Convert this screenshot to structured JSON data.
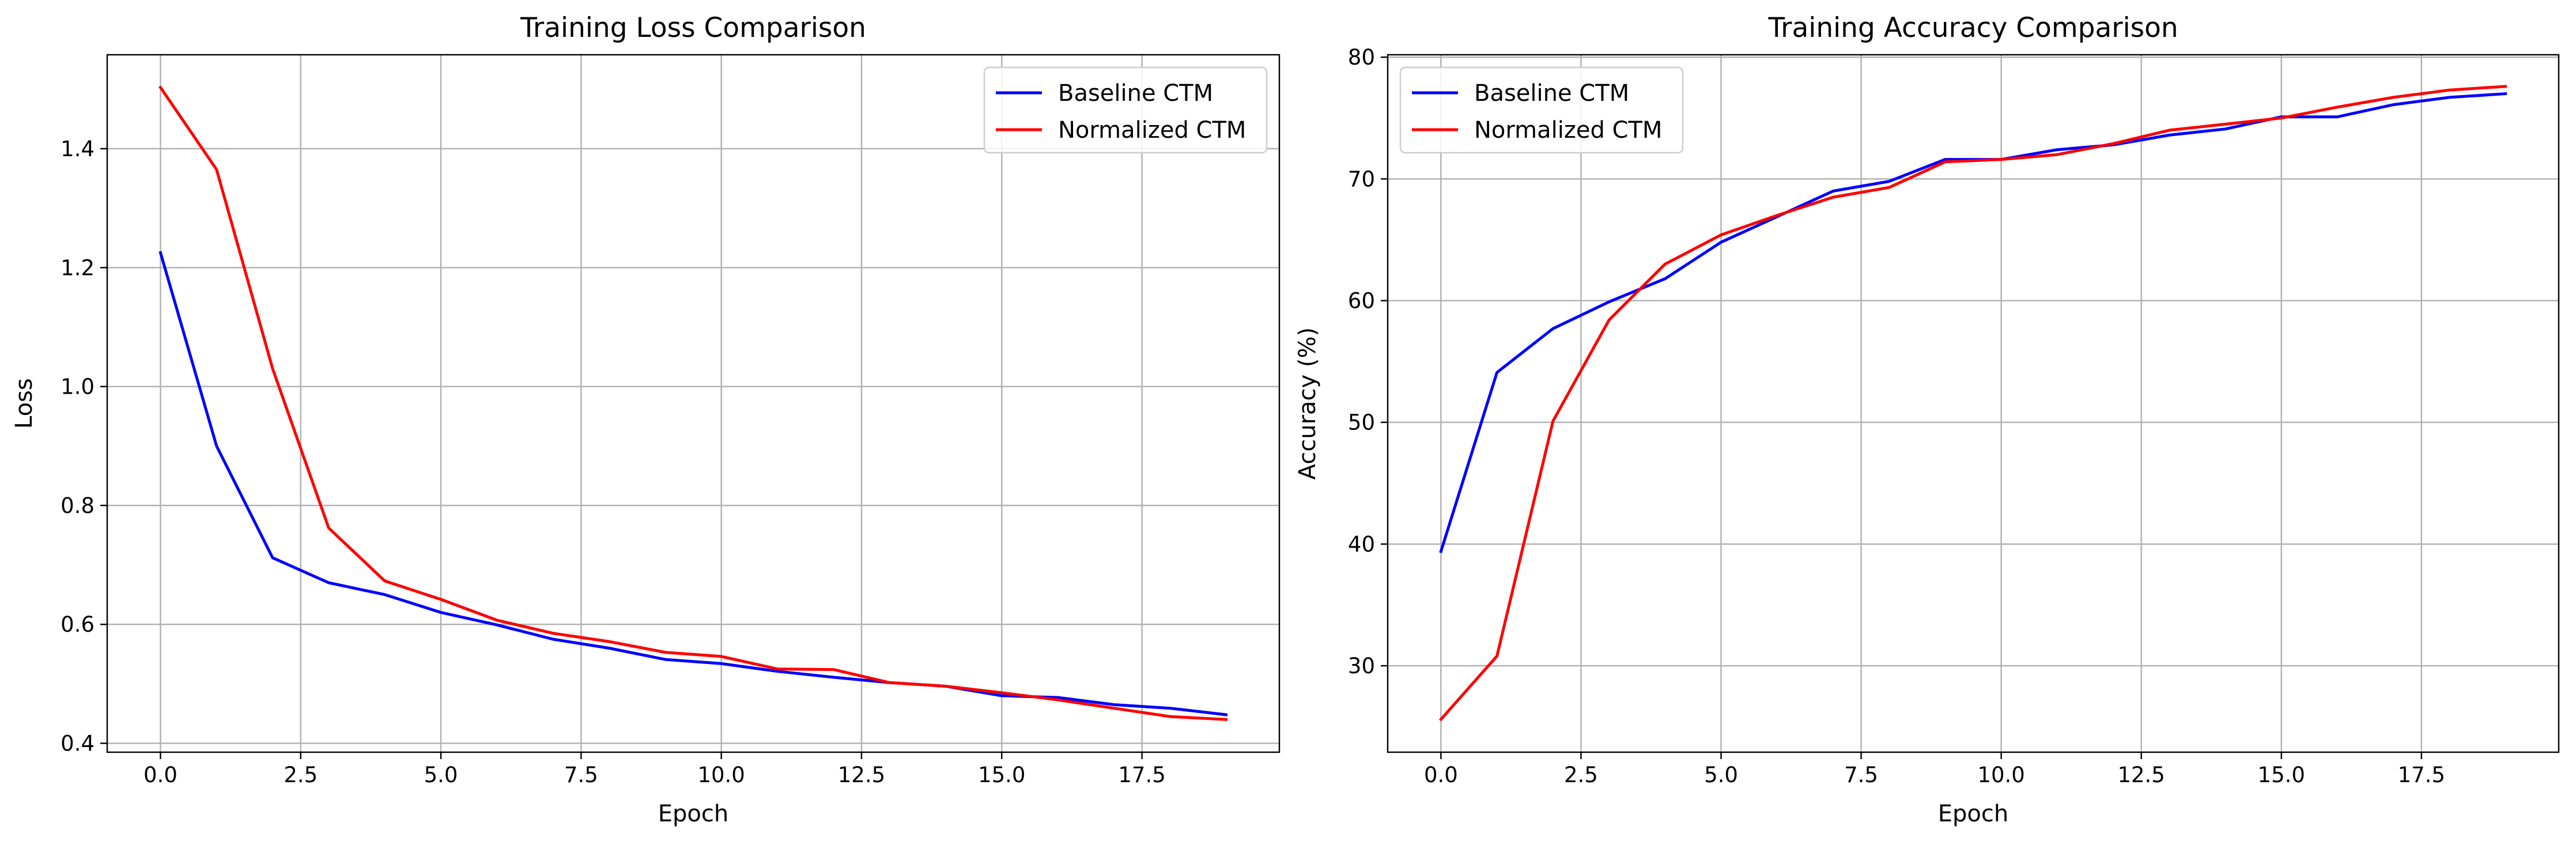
{
  "chart_data": [
    {
      "type": "line",
      "title": "Training Loss Comparison",
      "xlabel": "Epoch",
      "ylabel": "Loss",
      "xlim": [
        -0.95,
        19.95
      ],
      "ylim": [
        0.385,
        1.558
      ],
      "xticks": [
        0,
        2.5,
        5,
        7.5,
        10,
        12.5,
        15,
        17.5
      ],
      "xtick_labels": [
        "0.0",
        "2.5",
        "5.0",
        "7.5",
        "10.0",
        "12.5",
        "15.0",
        "17.5"
      ],
      "yticks": [
        0.4,
        0.6,
        0.8,
        1.0,
        1.2,
        1.4
      ],
      "ytick_labels": [
        "0.4",
        "0.6",
        "0.8",
        "1.0",
        "1.2",
        "1.4"
      ],
      "grid": true,
      "legend_position": "upper right",
      "x": [
        0,
        1,
        2,
        3,
        4,
        5,
        6,
        7,
        8,
        9,
        10,
        11,
        12,
        13,
        14,
        15,
        16,
        17,
        18,
        19
      ],
      "series": [
        {
          "name": "Baseline CTM",
          "color": "#0000ff",
          "values": [
            1.225,
            0.9,
            0.712,
            0.67,
            0.65,
            0.62,
            0.599,
            0.575,
            0.56,
            0.541,
            0.534,
            0.521,
            0.511,
            0.502,
            0.496,
            0.48,
            0.477,
            0.465,
            0.459,
            0.448
          ]
        },
        {
          "name": "Normalized CTM",
          "color": "#ff0000",
          "values": [
            1.503,
            1.365,
            1.03,
            0.762,
            0.673,
            0.642,
            0.607,
            0.585,
            0.571,
            0.553,
            0.546,
            0.525,
            0.524,
            0.502,
            0.496,
            0.485,
            0.473,
            0.459,
            0.445,
            0.44
          ]
        }
      ]
    },
    {
      "type": "line",
      "title": "Training Accuracy Comparison",
      "xlabel": "Epoch",
      "ylabel": "Accuracy (%)",
      "xlim": [
        -0.95,
        19.95
      ],
      "ylim": [
        22.9,
        80.2
      ],
      "xticks": [
        0,
        2.5,
        5,
        7.5,
        10,
        12.5,
        15,
        17.5
      ],
      "xtick_labels": [
        "0.0",
        "2.5",
        "5.0",
        "7.5",
        "10.0",
        "12.5",
        "15.0",
        "17.5"
      ],
      "yticks": [
        30,
        40,
        50,
        60,
        70,
        80
      ],
      "ytick_labels": [
        "30",
        "40",
        "50",
        "60",
        "70",
        "80"
      ],
      "grid": true,
      "legend_position": "upper left",
      "x": [
        0,
        1,
        2,
        3,
        4,
        5,
        6,
        7,
        8,
        9,
        10,
        11,
        12,
        13,
        14,
        15,
        16,
        17,
        18,
        19
      ],
      "series": [
        {
          "name": "Baseline CTM",
          "color": "#0000ff",
          "values": [
            39.4,
            54.1,
            57.7,
            59.9,
            61.8,
            64.8,
            66.9,
            69.0,
            69.8,
            71.6,
            71.6,
            72.4,
            72.8,
            73.6,
            74.1,
            75.1,
            75.1,
            76.1,
            76.7,
            77.0
          ]
        },
        {
          "name": "Normalized CTM",
          "color": "#ff0000",
          "values": [
            25.6,
            30.8,
            50.1,
            58.4,
            63.0,
            65.4,
            67.0,
            68.5,
            69.3,
            71.4,
            71.6,
            72.0,
            72.9,
            74.0,
            74.5,
            75.0,
            75.9,
            76.7,
            77.3,
            77.6
          ]
        }
      ]
    }
  ]
}
